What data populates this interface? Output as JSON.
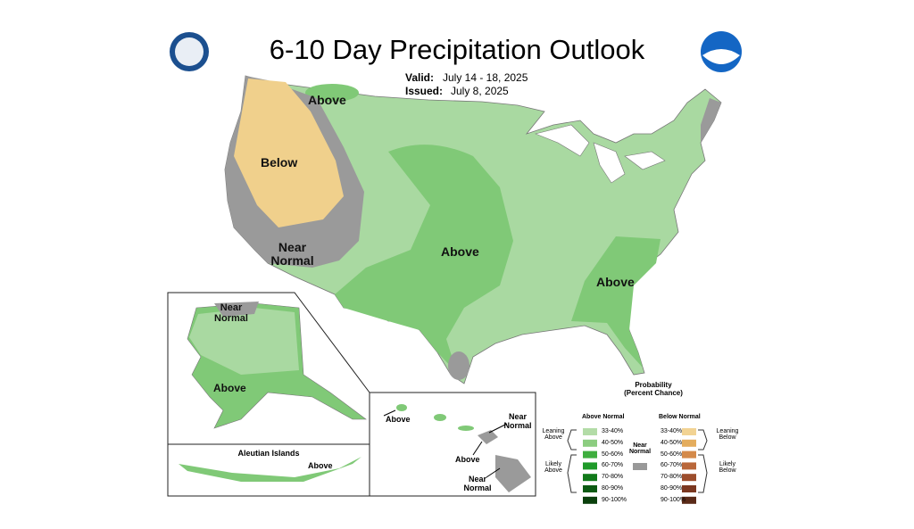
{
  "header": {
    "title": "6-10 Day Precipitation Outlook",
    "valid_label": "Valid:",
    "valid": "July 14 - 18, 2025",
    "issued_label": "Issued:",
    "issued": "July 8, 2025"
  },
  "map_labels": {
    "northwest_above": "Above",
    "west_below": "Below",
    "west_near_normal": "Near Normal",
    "central_above": "Above",
    "southeast_above": "Above"
  },
  "alaska": {
    "near_normal": "Near Normal",
    "above": "Above"
  },
  "aleutian": {
    "title": "Aleutian Islands",
    "above": "Above"
  },
  "hawaii": {
    "above_left": "Above",
    "near_normal_top": "Near Normal",
    "above_bottom": "Above",
    "near_normal_bottom": "Near Normal"
  },
  "legend": {
    "title": "Probability",
    "subtitle": "(Percent Chance)",
    "above_header": "Above Normal",
    "below_header": "Below Normal",
    "above": [
      {
        "label": "33-40%",
        "color": "#b3dca7"
      },
      {
        "label": "40-50%",
        "color": "#8ccd80"
      },
      {
        "label": "50-60%",
        "color": "#3fae3f"
      },
      {
        "label": "60-70%",
        "color": "#1f9a2a"
      },
      {
        "label": "70-80%",
        "color": "#117a1a"
      },
      {
        "label": "80-90%",
        "color": "#0b5a12"
      },
      {
        "label": "90-100%",
        "color": "#0a3f0c"
      }
    ],
    "below": [
      {
        "label": "33-40%",
        "color": "#f2d393"
      },
      {
        "label": "40-50%",
        "color": "#e4ad5e"
      },
      {
        "label": "50-60%",
        "color": "#d48a4a"
      },
      {
        "label": "60-70%",
        "color": "#b9673a"
      },
      {
        "label": "70-80%",
        "color": "#9c4d2c"
      },
      {
        "label": "80-90%",
        "color": "#7b3720"
      },
      {
        "label": "90-100%",
        "color": "#5a2a18"
      }
    ],
    "leaning_above": "Leaning Above",
    "likely_above": "Likely Above",
    "near_normal": "Near Normal",
    "near_normal_color": "#999999",
    "leaning_below": "Leaning Below",
    "likely_below": "Likely Below"
  }
}
